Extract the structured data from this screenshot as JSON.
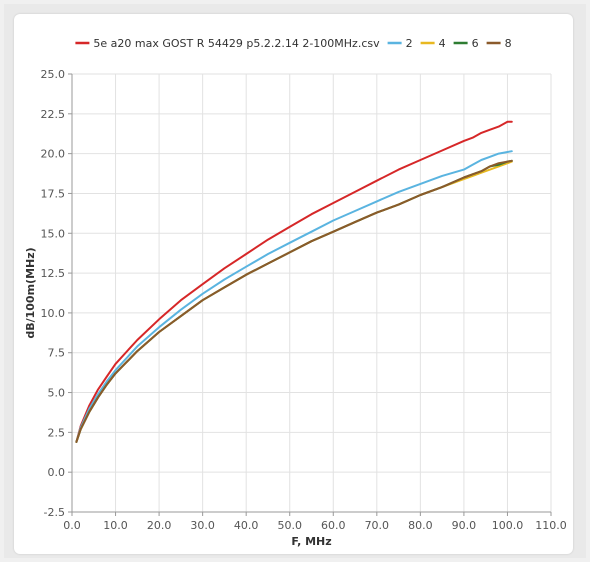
{
  "chart_data": {
    "type": "line",
    "xlabel": "F, MHz",
    "ylabel": "dB/100m(MHz)",
    "xlim": [
      0.0,
      110.0
    ],
    "ylim": [
      -2.5,
      25.0
    ],
    "x_ticks": [
      "0.0",
      "10.0",
      "20.0",
      "30.0",
      "40.0",
      "50.0",
      "60.0",
      "70.0",
      "80.0",
      "90.0",
      "100.0",
      "110.0"
    ],
    "y_ticks": [
      "-2.5",
      "0.0",
      "2.5",
      "5.0",
      "7.5",
      "10.0",
      "12.5",
      "15.0",
      "17.5",
      "20.0",
      "22.5",
      "25.0"
    ],
    "grid": true,
    "legend_position": "top",
    "x": [
      1,
      2,
      4,
      6,
      8,
      10,
      15,
      20,
      25,
      30,
      35,
      40,
      45,
      50,
      55,
      60,
      65,
      70,
      75,
      80,
      85,
      90,
      92,
      94,
      96,
      98,
      100,
      101
    ],
    "series": [
      {
        "name": "5e a20 max GOST R 54429 p5.2.2.14 2-100MHz.csv",
        "color": "#d62728",
        "values": [
          1.9,
          2.9,
          4.2,
          5.2,
          6.0,
          6.8,
          8.3,
          9.6,
          10.8,
          11.8,
          12.8,
          13.7,
          14.6,
          15.4,
          16.2,
          16.9,
          17.6,
          18.3,
          19.0,
          19.6,
          20.2,
          20.8,
          21.0,
          21.3,
          21.5,
          21.7,
          22.0,
          22.0
        ]
      },
      {
        "name": "2",
        "color": "#5ab4e0",
        "values": [
          1.9,
          2.8,
          4.0,
          4.9,
          5.7,
          6.4,
          7.9,
          9.1,
          10.2,
          11.2,
          12.1,
          12.9,
          13.7,
          14.4,
          15.1,
          15.8,
          16.4,
          17.0,
          17.6,
          18.1,
          18.6,
          19.0,
          19.3,
          19.6,
          19.8,
          20.0,
          20.1,
          20.15
        ]
      },
      {
        "name": "4",
        "color": "#e8b820",
        "values": [
          1.9,
          2.7,
          3.8,
          4.7,
          5.5,
          6.2,
          7.6,
          8.8,
          9.8,
          10.8,
          11.6,
          12.4,
          13.1,
          13.8,
          14.5,
          15.1,
          15.7,
          16.3,
          16.8,
          17.4,
          17.9,
          18.4,
          18.6,
          18.8,
          19.0,
          19.2,
          19.4,
          19.5
        ]
      },
      {
        "name": "6",
        "color": "#2e7d32",
        "values": [
          1.9,
          2.7,
          3.8,
          4.7,
          5.5,
          6.2,
          7.6,
          8.8,
          9.8,
          10.8,
          11.6,
          12.4,
          13.1,
          13.8,
          14.5,
          15.1,
          15.7,
          16.3,
          16.8,
          17.4,
          17.9,
          18.5,
          18.7,
          18.9,
          19.2,
          19.3,
          19.5,
          19.55
        ]
      },
      {
        "name": "8",
        "color": "#8b5a2b",
        "values": [
          1.9,
          2.7,
          3.8,
          4.7,
          5.5,
          6.2,
          7.6,
          8.8,
          9.8,
          10.8,
          11.6,
          12.4,
          13.1,
          13.8,
          14.5,
          15.1,
          15.7,
          16.3,
          16.8,
          17.4,
          17.9,
          18.5,
          18.7,
          18.9,
          19.2,
          19.4,
          19.5,
          19.55
        ]
      }
    ]
  }
}
